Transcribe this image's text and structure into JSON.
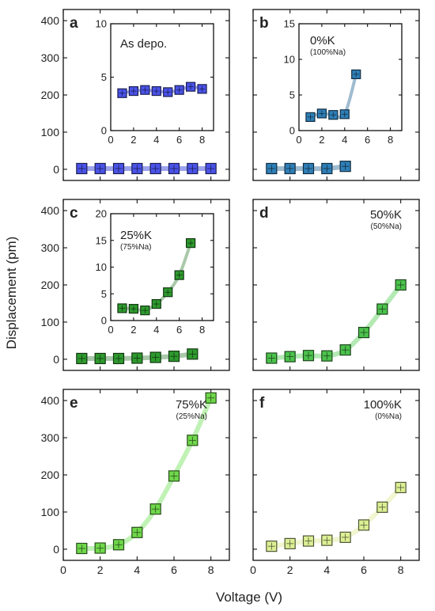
{
  "figure": {
    "ylabel": "Displacement (pm)",
    "xlabel": "Voltage (V)"
  },
  "chart_data": [
    {
      "panel": "a",
      "type": "scatter",
      "label": "As depo.",
      "sublabel": "",
      "x": [
        1,
        2,
        3,
        4,
        5,
        6,
        7,
        8
      ],
      "y": [
        2,
        2,
        2,
        2,
        2,
        2,
        2,
        2
      ],
      "xlim": [
        0,
        9
      ],
      "ylim": [
        -30,
        430
      ],
      "xticks": [
        0,
        2,
        4,
        6,
        8
      ],
      "yticks": [
        0,
        100,
        200,
        300,
        400
      ],
      "color": "#4a53e8",
      "line_color": "#8c93ea",
      "inset": {
        "x": [
          1,
          2,
          3,
          4,
          5,
          6,
          7,
          8
        ],
        "y": [
          3.5,
          3.7,
          3.8,
          3.7,
          3.6,
          3.8,
          4.1,
          3.9
        ],
        "xlim": [
          0,
          9
        ],
        "ylim": [
          0,
          10
        ],
        "xticks": [
          0,
          2,
          4,
          6,
          8
        ],
        "yticks": [
          0,
          5,
          10
        ]
      }
    },
    {
      "panel": "b",
      "type": "scatter",
      "label": "0%K",
      "sublabel": "(100%Na)",
      "x": [
        1,
        2,
        3,
        4,
        5
      ],
      "y": [
        2,
        2,
        2,
        2,
        8
      ],
      "xlim": [
        0,
        9
      ],
      "ylim": [
        -30,
        430
      ],
      "xticks": [
        0,
        2,
        4,
        6,
        8
      ],
      "yticks": [
        0,
        100,
        200,
        300,
        400
      ],
      "color": "#2f7fb7",
      "line_color": "#8fb0c8",
      "inset": {
        "x": [
          1,
          2,
          3,
          4,
          5
        ],
        "y": [
          1.9,
          2.4,
          2.2,
          2.3,
          7.9
        ],
        "xlim": [
          0,
          9
        ],
        "ylim": [
          0,
          15
        ],
        "xticks": [
          0,
          2,
          4,
          6,
          8
        ],
        "yticks": [
          0,
          5,
          10,
          15
        ]
      }
    },
    {
      "panel": "c",
      "type": "scatter",
      "label": "25%K",
      "sublabel": "(75%Na)",
      "x": [
        1,
        2,
        3,
        4,
        5,
        6,
        7
      ],
      "y": [
        2,
        2,
        2,
        3,
        5,
        8,
        14
      ],
      "xlim": [
        0,
        9
      ],
      "ylim": [
        -30,
        430
      ],
      "xticks": [
        0,
        2,
        4,
        6,
        8
      ],
      "yticks": [
        0,
        100,
        200,
        300,
        400
      ],
      "color": "#2e9a2e",
      "line_color": "#9bbf9b",
      "inset": {
        "x": [
          1,
          2,
          3,
          4,
          5,
          6,
          7
        ],
        "y": [
          2.3,
          2.2,
          1.9,
          3.1,
          5.3,
          8.5,
          14.5
        ],
        "xlim": [
          0,
          9
        ],
        "ylim": [
          0,
          20
        ],
        "xticks": [
          0,
          2,
          4,
          6,
          8
        ],
        "yticks": [
          0,
          5,
          10,
          15,
          20
        ]
      }
    },
    {
      "panel": "d",
      "type": "scatter",
      "label": "50%K",
      "sublabel": "(50%Na)",
      "x": [
        1,
        2,
        3,
        4,
        5,
        6,
        7,
        8
      ],
      "y": [
        3,
        7,
        10,
        9,
        25,
        72,
        135,
        200
      ],
      "xlim": [
        0,
        9
      ],
      "ylim": [
        -30,
        430
      ],
      "xticks": [
        0,
        2,
        4,
        6,
        8
      ],
      "yticks": [
        0,
        100,
        200,
        300,
        400
      ],
      "color": "#4cc24c",
      "line_color": "#a6e6a6"
    },
    {
      "panel": "e",
      "type": "scatter",
      "label": "75%K",
      "sublabel": "(25%Na)",
      "x": [
        1,
        2,
        3,
        4,
        5,
        6,
        7,
        8
      ],
      "y": [
        2,
        3,
        12,
        45,
        108,
        197,
        293,
        407
      ],
      "xlim": [
        0,
        9
      ],
      "ylim": [
        -30,
        430
      ],
      "xticks": [
        0,
        2,
        4,
        6,
        8
      ],
      "yticks": [
        0,
        100,
        200,
        300,
        400
      ],
      "color": "#6fd84a",
      "line_color": "#b5f0a8"
    },
    {
      "panel": "f",
      "type": "scatter",
      "label": "100%K",
      "sublabel": "(0%Na)",
      "x": [
        1,
        2,
        3,
        4,
        5,
        6,
        7,
        8
      ],
      "y": [
        8,
        15,
        22,
        24,
        32,
        65,
        113,
        166
      ],
      "xlim": [
        0,
        9
      ],
      "ylim": [
        -30,
        430
      ],
      "xticks": [
        0,
        2,
        4,
        6,
        8
      ],
      "yticks": [
        0,
        100,
        200,
        300,
        400
      ],
      "color": "#dcef94",
      "line_color": "#eef5c9"
    }
  ]
}
